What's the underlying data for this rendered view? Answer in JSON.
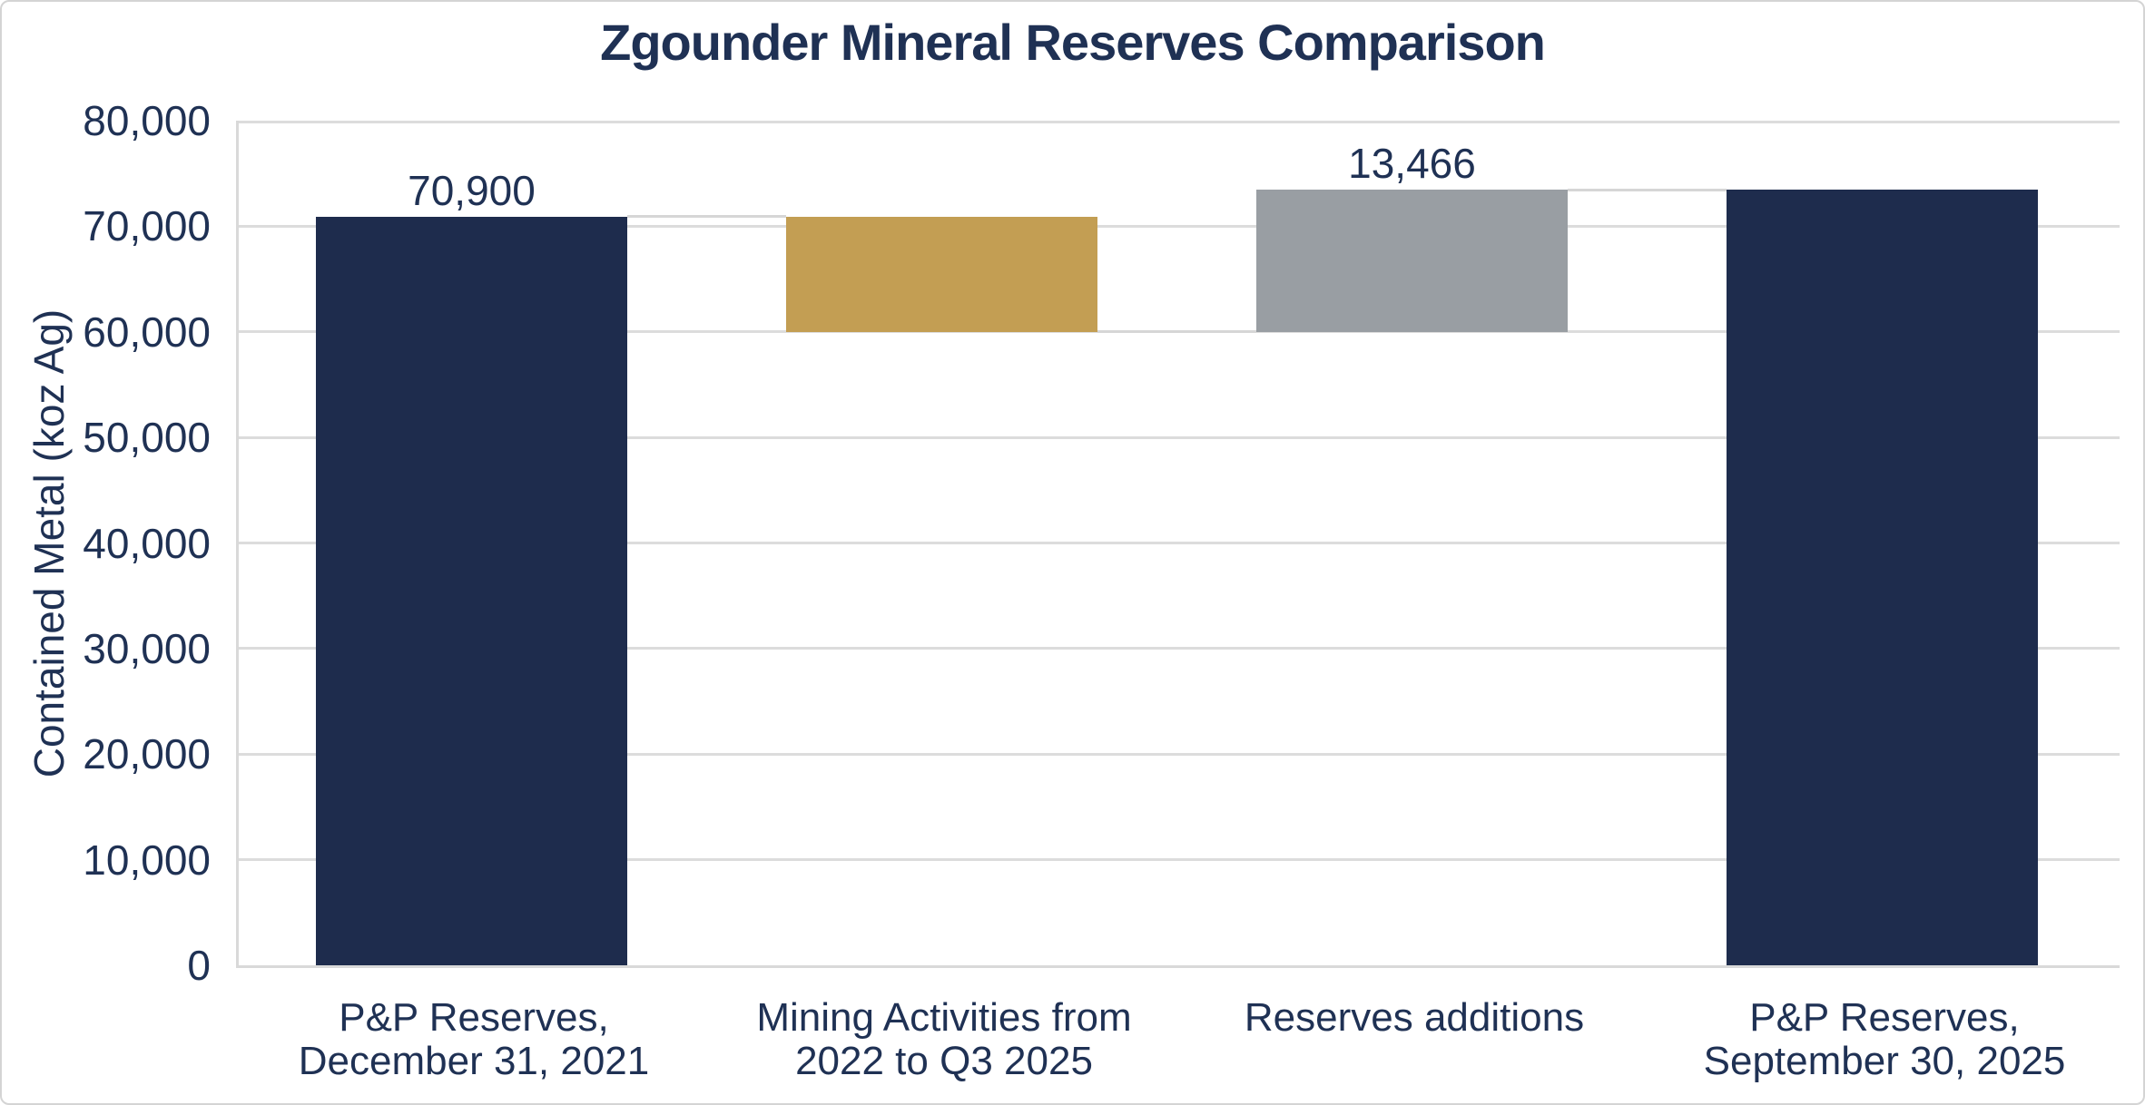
{
  "page": {
    "title": "Zgounder Mineral Reserves Comparison"
  },
  "colors": {
    "navy": "#1e2c4d",
    "gold": "#c39e53",
    "gray": "#999ea3",
    "text": "#1f3154",
    "gridline": "#dcdcdc",
    "axis": "#d9d9d9",
    "background": "#ffffff"
  },
  "chart_data": {
    "type": "bar",
    "subtype": "waterfall",
    "title": "Zgounder Mineral Reserves Comparison",
    "xlabel": "",
    "ylabel": "Contained Metal (koz Ag)",
    "ylim": [
      0,
      80000
    ],
    "ytick_step": 10000,
    "ytick_labels": [
      "0",
      "10,000",
      "20,000",
      "30,000",
      "40,000",
      "50,000",
      "60,000",
      "70,000",
      "80,000"
    ],
    "grid": true,
    "legend": false,
    "bars": [
      {
        "category_lines": [
          "P&P Reserves,",
          "December 31, 2021"
        ],
        "base": 0,
        "top": 70900,
        "value_label": "70,900",
        "color": "navy"
      },
      {
        "category_lines": [
          "Mining Activities from",
          "2022 to Q3 2025"
        ],
        "base": 60000,
        "top": 70900,
        "value_label": "",
        "color": "gold"
      },
      {
        "category_lines": [
          "Reserves additions"
        ],
        "base": 60000,
        "top": 73466,
        "value_label": "13,466",
        "color": "gray"
      },
      {
        "category_lines": [
          "P&P Reserves,",
          "September 30, 2025"
        ],
        "base": 0,
        "top": 73466,
        "value_label": "",
        "color": "navy"
      }
    ],
    "connectors": [
      {
        "after_bar": 0,
        "value": 70900
      },
      {
        "after_bar": 1,
        "value": 60000
      },
      {
        "after_bar": 2,
        "value": 73466
      }
    ]
  }
}
